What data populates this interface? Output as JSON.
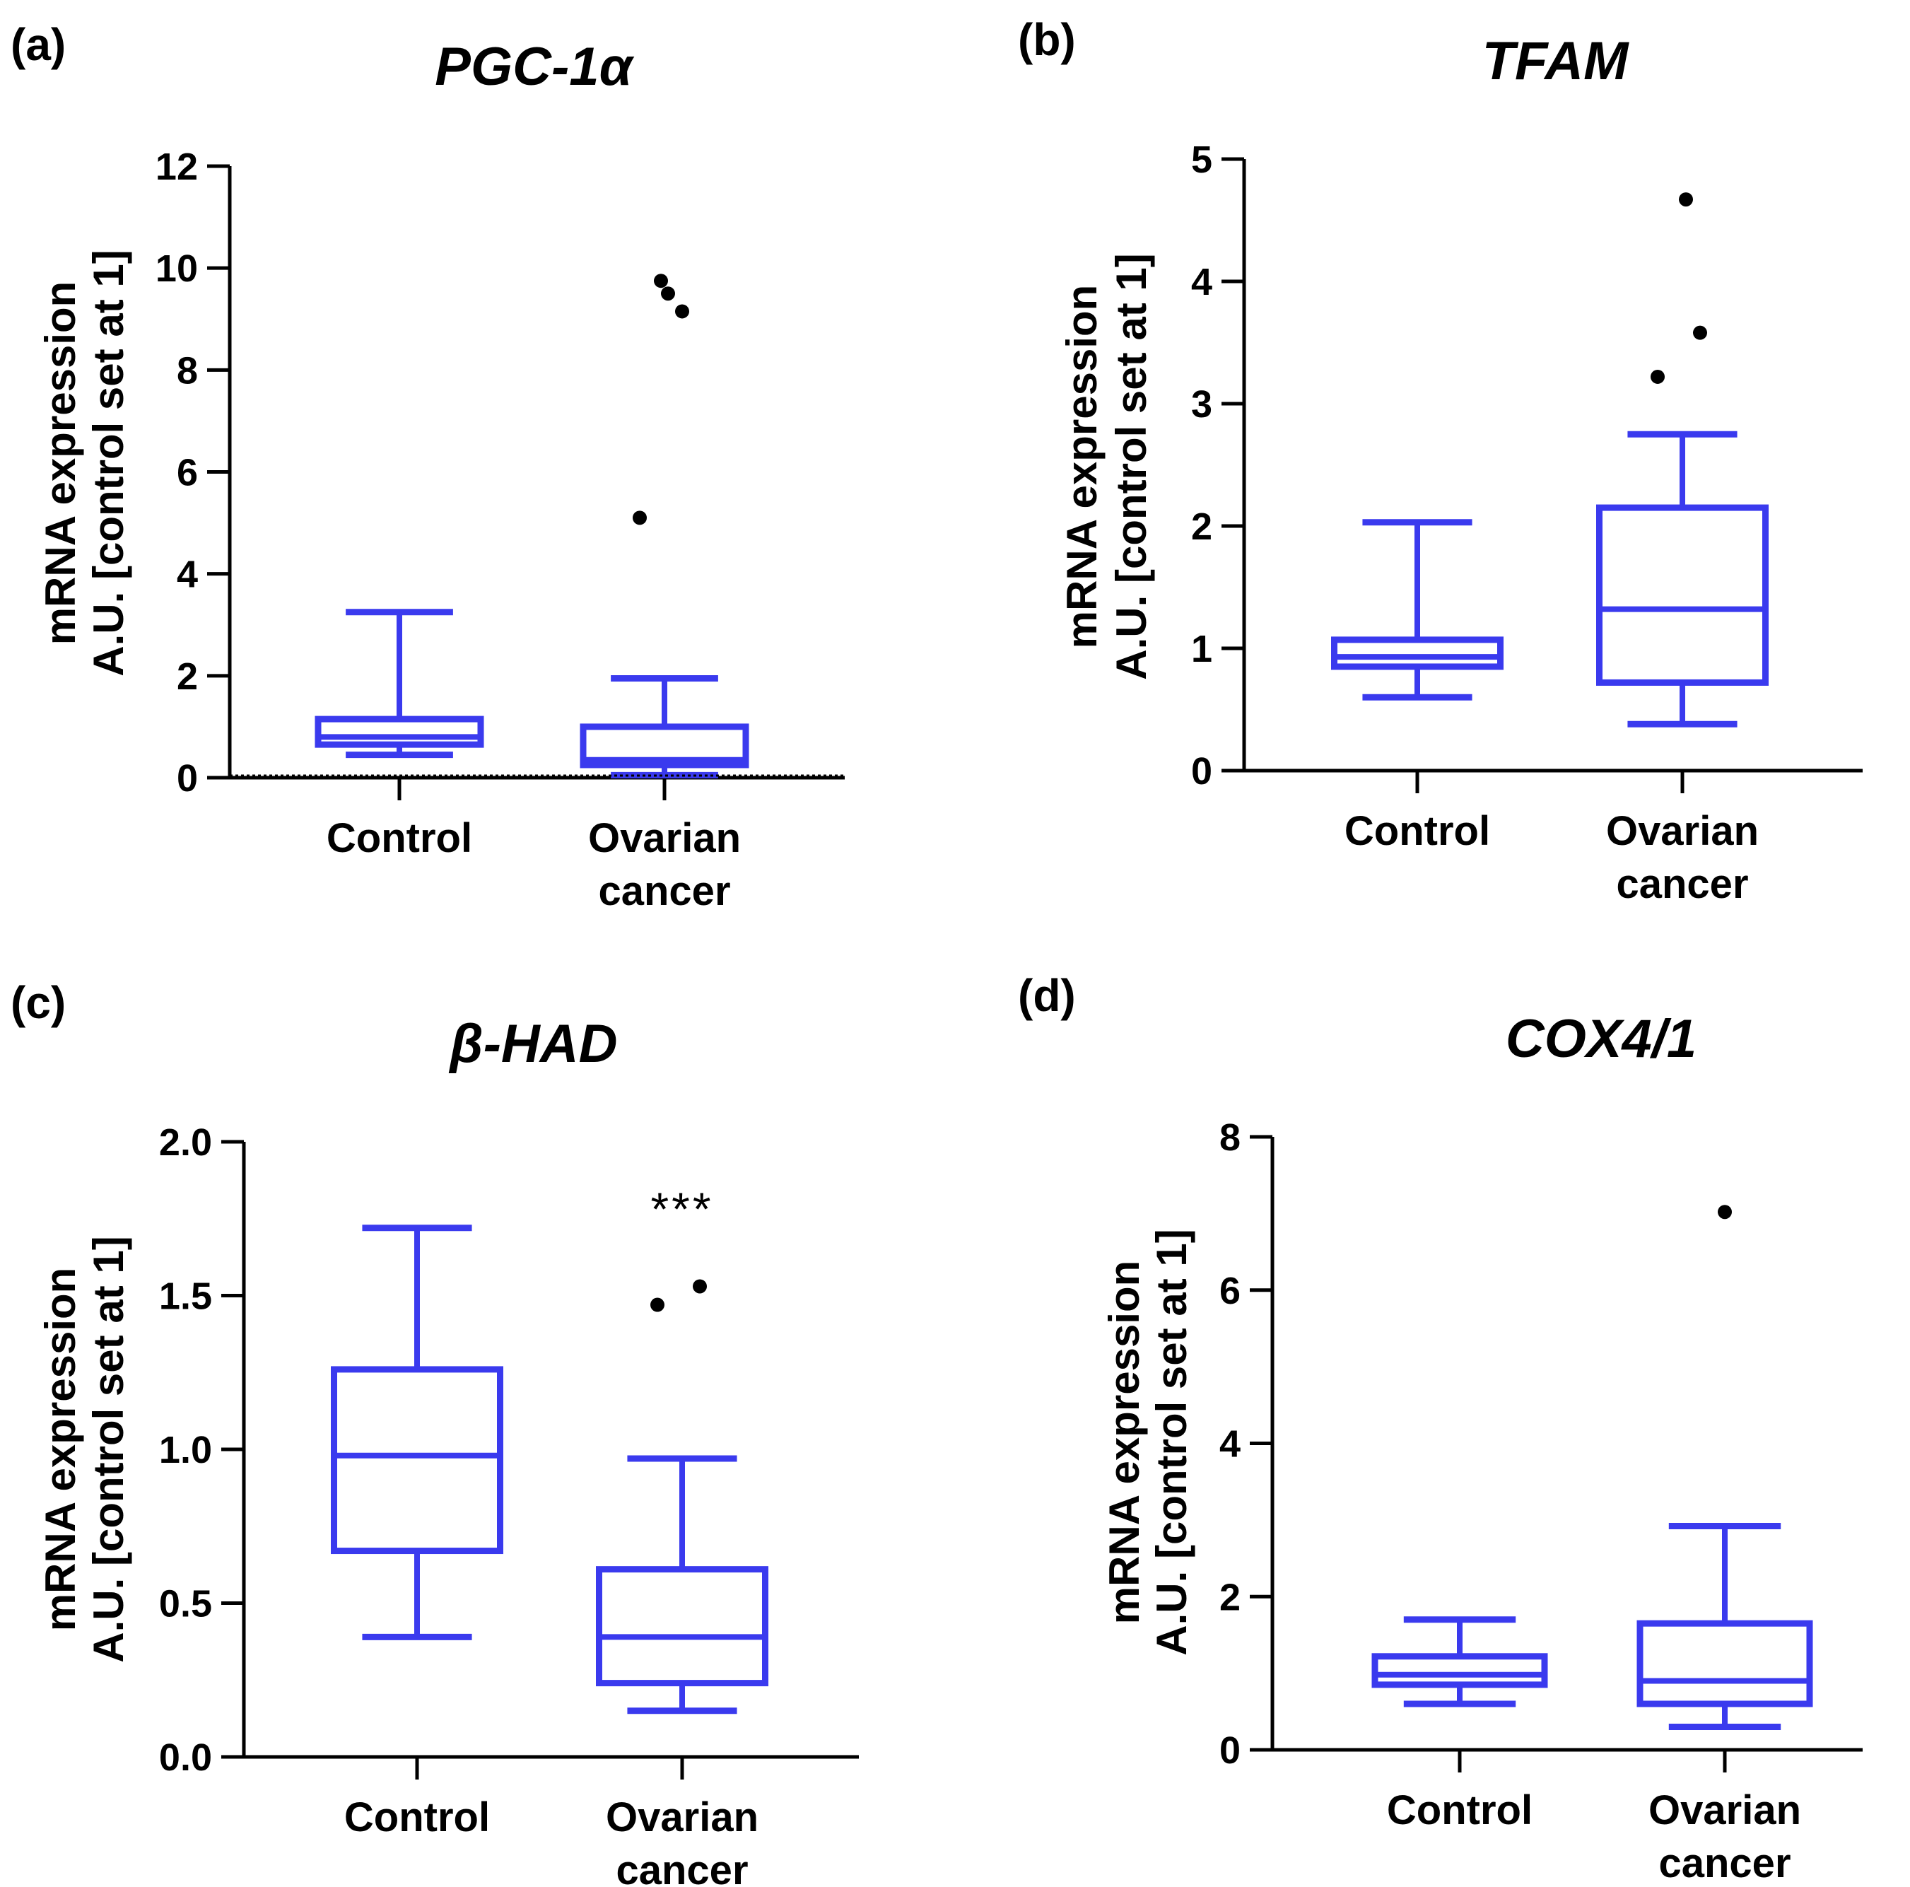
{
  "colors": {
    "box": "#3a3aee",
    "axis": "#000000",
    "outlier": "#000000"
  },
  "y_label_lines": [
    "mRNA expression",
    "A.U. [control set at 1]"
  ],
  "chart_data": [
    {
      "panel": "(a)",
      "type": "box",
      "title": "PGC-1α",
      "ylim": [
        0,
        12
      ],
      "yticks": [
        "0",
        "2",
        "4",
        "6",
        "8",
        "10",
        "12"
      ],
      "categories": [
        {
          "label": [
            "Control"
          ],
          "min": 0.45,
          "q1": 0.65,
          "median": 0.8,
          "q3": 1.15,
          "max": 3.25,
          "outliers": []
        },
        {
          "label": [
            "Ovarian",
            "cancer"
          ],
          "min": 0.05,
          "q1": 0.25,
          "median": 0.35,
          "q3": 1.0,
          "max": 1.95,
          "outliers": [
            5.1,
            9.15,
            9.5,
            9.75
          ]
        }
      ],
      "significance": ""
    },
    {
      "panel": "(b)",
      "type": "box",
      "title": "TFAM",
      "ylim": [
        0,
        5
      ],
      "yticks": [
        "0",
        "1",
        "2",
        "3",
        "4",
        "5"
      ],
      "categories": [
        {
          "label": [
            "Control"
          ],
          "min": 0.6,
          "q1": 0.85,
          "median": 0.93,
          "q3": 1.07,
          "max": 2.03,
          "outliers": []
        },
        {
          "label": [
            "Ovarian",
            "cancer"
          ],
          "min": 0.38,
          "q1": 0.72,
          "median": 1.32,
          "q3": 2.15,
          "max": 2.75,
          "outliers": [
            3.22,
            3.58,
            4.67
          ]
        }
      ],
      "significance": ""
    },
    {
      "panel": "(c)",
      "type": "box",
      "title": "β-HAD",
      "ylim": [
        0,
        2
      ],
      "yticks": [
        "0.0",
        "0.5",
        "1.0",
        "1.5",
        "2.0"
      ],
      "categories": [
        {
          "label": [
            "Control"
          ],
          "min": 0.39,
          "q1": 0.67,
          "median": 0.98,
          "q3": 1.26,
          "max": 1.72,
          "outliers": []
        },
        {
          "label": [
            "Ovarian",
            "cancer"
          ],
          "min": 0.15,
          "q1": 0.24,
          "median": 0.39,
          "q3": 0.61,
          "max": 0.97,
          "outliers": [
            1.47,
            1.53
          ]
        }
      ],
      "significance": "***"
    },
    {
      "panel": "(d)",
      "type": "box",
      "title": "COX4/1",
      "ylim": [
        0,
        8
      ],
      "yticks": [
        "0",
        "2",
        "4",
        "6",
        "8"
      ],
      "categories": [
        {
          "label": [
            "Control"
          ],
          "min": 0.6,
          "q1": 0.85,
          "median": 0.98,
          "q3": 1.22,
          "max": 1.7,
          "outliers": []
        },
        {
          "label": [
            "Ovarian",
            "cancer"
          ],
          "min": 0.3,
          "q1": 0.6,
          "median": 0.9,
          "q3": 1.65,
          "max": 2.92,
          "outliers": [
            7.02
          ]
        }
      ],
      "significance": ""
    }
  ]
}
